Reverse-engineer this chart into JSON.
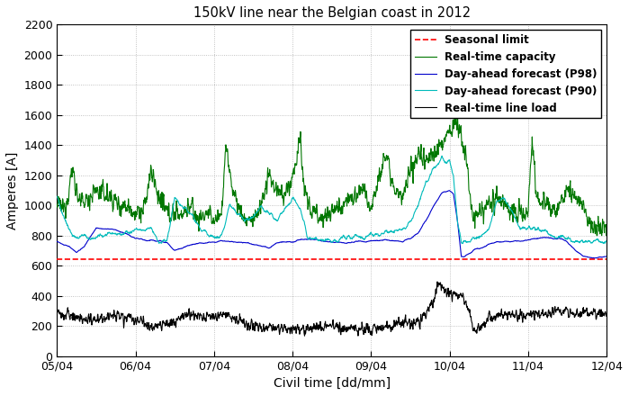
{
  "title": "150kV line near the Belgian coast in 2012",
  "xlabel": "Civil time [dd/mm]",
  "ylabel": "Amperes [A]",
  "ylim": [
    0,
    2200
  ],
  "yticks": [
    0,
    200,
    400,
    600,
    800,
    1000,
    1200,
    1400,
    1600,
    1800,
    2000,
    2200
  ],
  "seasonal_limit": 645,
  "seasonal_limit_color": "#ff0000",
  "seasonal_limit_label": "Seasonal limit",
  "rtc_color": "#007700",
  "rtc_label": "Real-time capacity",
  "p98_color": "#0000cc",
  "p98_label": "Day-ahead forecast (P98)",
  "p90_color": "#00bbbb",
  "p90_label": "Day-ahead forecast (P90)",
  "rtl_color": "#000000",
  "rtl_label": "Real-time line load",
  "xtick_labels": [
    "05/04",
    "06/04",
    "07/04",
    "08/04",
    "09/04",
    "10/04",
    "11/04",
    "12/04"
  ],
  "background_color": "#ffffff",
  "grid_color": "#aaaaaa",
  "legend_fontsize": 8.5,
  "title_fontsize": 10.5
}
